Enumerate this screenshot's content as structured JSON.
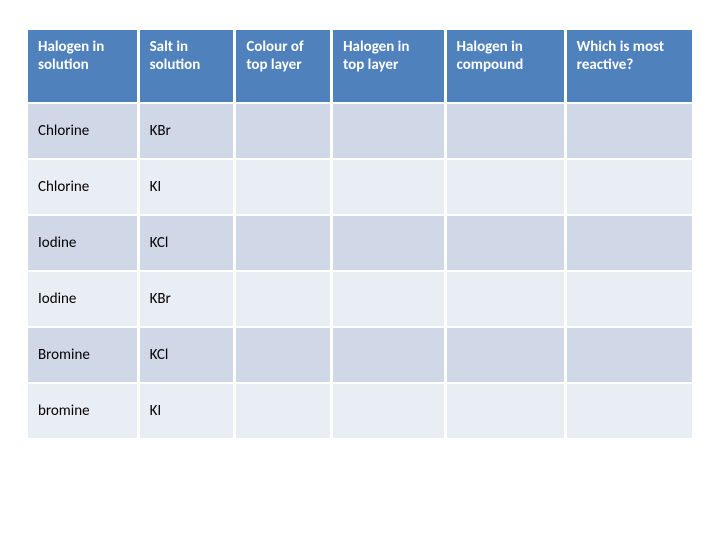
{
  "table": {
    "columns": [
      "Halogen in solution",
      "Salt in solution",
      "Colour of top layer",
      "Halogen in top layer",
      "Halogen in compound",
      "Which is most reactive?"
    ],
    "rows": [
      [
        "Chlorine",
        "KBr",
        "",
        "",
        "",
        ""
      ],
      [
        "Chlorine",
        "KI",
        "",
        "",
        "",
        ""
      ],
      [
        "Iodine",
        "KCl",
        "",
        "",
        "",
        ""
      ],
      [
        "Iodine",
        "KBr",
        "",
        "",
        "",
        ""
      ],
      [
        "Bromine",
        "KCl",
        "",
        "",
        "",
        ""
      ],
      [
        "bromine",
        "KI",
        "",
        "",
        "",
        ""
      ]
    ],
    "header_bg": "#4f81bd",
    "header_color": "#ffffff",
    "row_alt_colors": [
      "#d0d8e8",
      "#e9edf4"
    ],
    "font_size": 15,
    "border_color": "#ffffff"
  }
}
